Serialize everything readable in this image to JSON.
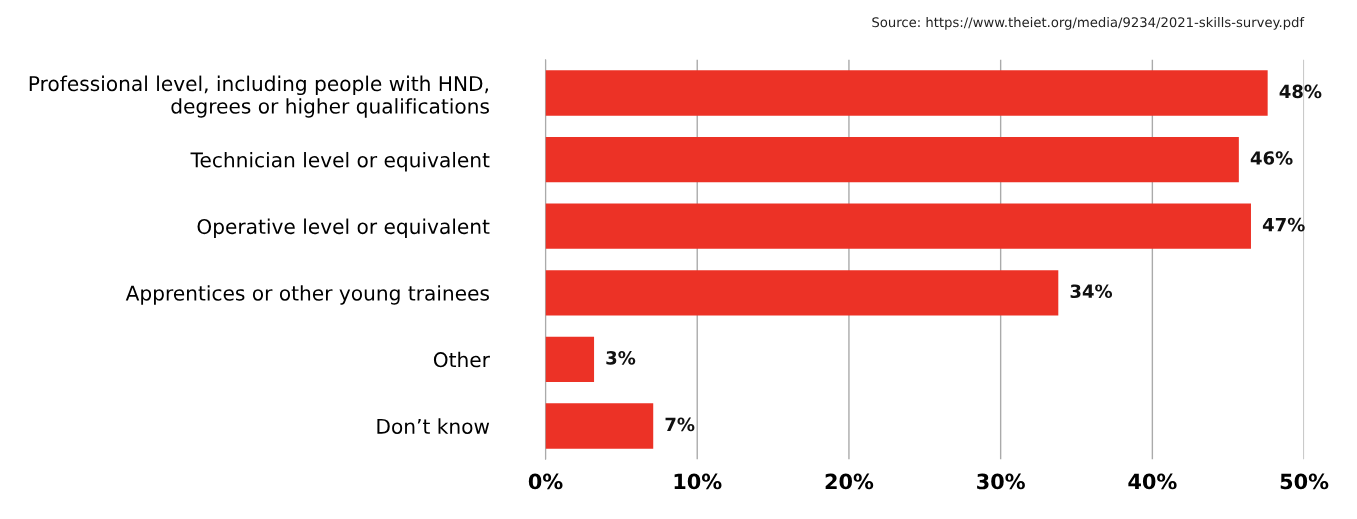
{
  "chart_data": {
    "type": "bar",
    "orientation": "horizontal",
    "categories": [
      "Professional level, including people with HND,\ndegrees or higher qualifications",
      "Technician level or equivalent",
      "Operative level or equivalent",
      "Apprentices or other young trainees",
      "Other",
      "Don’t know"
    ],
    "values": [
      47.6,
      45.7,
      46.5,
      33.8,
      3.2,
      7.1
    ],
    "value_labels": [
      "48%",
      "46%",
      "47%",
      "34%",
      "3%",
      "7%"
    ],
    "color": "#ec3226",
    "xlim": [
      0,
      50
    ],
    "xticks": [
      {
        "value": 0,
        "label": "0%"
      },
      {
        "value": 10,
        "label": "10%"
      },
      {
        "value": 20,
        "label": "20%"
      },
      {
        "value": 30,
        "label": "30%"
      },
      {
        "value": 40,
        "label": "40%"
      },
      {
        "value": 50,
        "label": "50%"
      }
    ],
    "grid": "x",
    "legend": false,
    "annotations": [
      "Source: https://www.theiet.org/media/9234/2021-skills-survey.pdf"
    ]
  }
}
